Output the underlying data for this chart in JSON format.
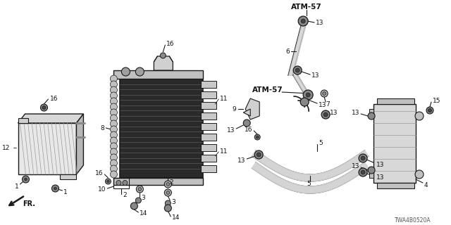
{
  "bg_color": "#ffffff",
  "line_color": "#1a1a1a",
  "diagram_code": "TWA4B0520A",
  "atm57_label": "ATM-57",
  "gray_fill": "#c8c8c8",
  "dark_fill": "#444444",
  "med_fill": "#888888",
  "light_fill": "#e8e8e8"
}
